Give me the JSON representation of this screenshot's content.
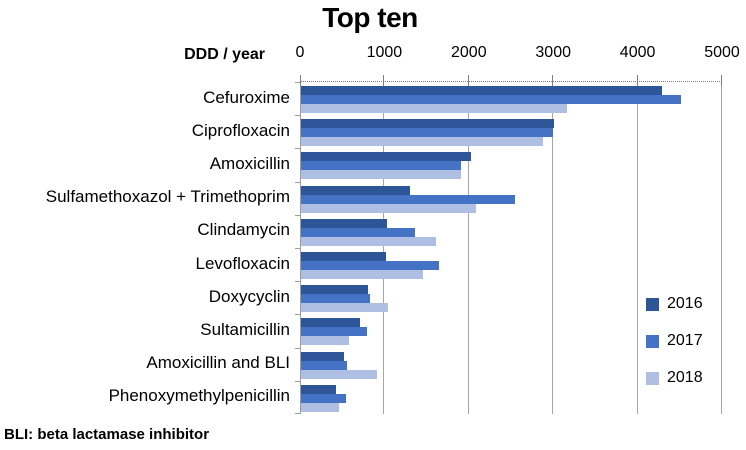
{
  "title": "Top ten",
  "axis_unit_label": "DDD / year",
  "footnote": "BLI: beta lactamase inhibitor",
  "chart_data": {
    "type": "bar",
    "orientation": "horizontal",
    "title": "Top ten",
    "xlabel": "DDD / year",
    "xlim": [
      0,
      5000
    ],
    "x_ticks": [
      0,
      1000,
      2000,
      3000,
      4000,
      5000
    ],
    "grid": true,
    "legend_position": "inside-right",
    "categories": [
      "Cefuroxime",
      "Ciprofloxacin",
      "Amoxicillin",
      "Sulfamethoxazol + Trimethoprim",
      "Clindamycin",
      "Levofloxacin",
      "Doxycyclin",
      "Sultamicillin",
      "Amoxicillin and BLI",
      "Phenoxymethylpenicillin"
    ],
    "series": [
      {
        "name": "2016",
        "color": "#2E5597",
        "values": [
          4280,
          3000,
          2010,
          1290,
          1020,
          1010,
          790,
          700,
          510,
          410
        ]
      },
      {
        "name": "2017",
        "color": "#4472C4",
        "values": [
          4500,
          2990,
          1890,
          2540,
          1350,
          1640,
          820,
          780,
          540,
          530
        ]
      },
      {
        "name": "2018",
        "color": "#AFBFE4",
        "values": [
          3150,
          2870,
          1900,
          2070,
          1600,
          1440,
          1030,
          570,
          900,
          450
        ]
      }
    ]
  }
}
